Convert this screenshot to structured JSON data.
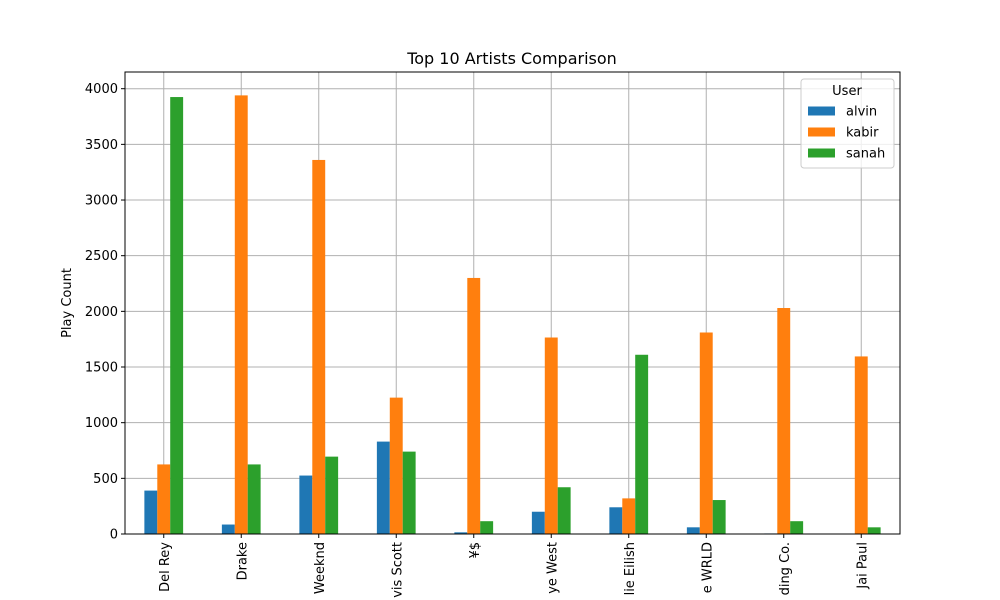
{
  "chart_data": {
    "type": "bar",
    "title": "Top 10 Artists Comparison",
    "xlabel": "",
    "ylabel": "Play Count",
    "ylim": [
      0,
      4150
    ],
    "yticks": [
      0,
      500,
      1000,
      1500,
      2000,
      2500,
      3000,
      3500,
      4000
    ],
    "categories": [
      "Del Rey",
      "Drake",
      "Weeknd",
      "vis Scott",
      "¥$",
      "ye West",
      "lie Eilish",
      "e WRLD",
      "ding Co.",
      "Jai Paul"
    ],
    "series": [
      {
        "name": "alvin",
        "color": "#1f77b4",
        "values": [
          390,
          85,
          525,
          830,
          15,
          200,
          240,
          60,
          5,
          0
        ]
      },
      {
        "name": "kabir",
        "color": "#ff7f0e",
        "values": [
          625,
          3940,
          3360,
          1225,
          2300,
          1765,
          320,
          1810,
          2030,
          1595
        ]
      },
      {
        "name": "sanah",
        "color": "#2ca02c",
        "values": [
          3925,
          625,
          695,
          740,
          115,
          420,
          1610,
          305,
          115,
          60
        ]
      }
    ],
    "legend": {
      "title": "User",
      "position": "top-right"
    },
    "grid": true
  }
}
